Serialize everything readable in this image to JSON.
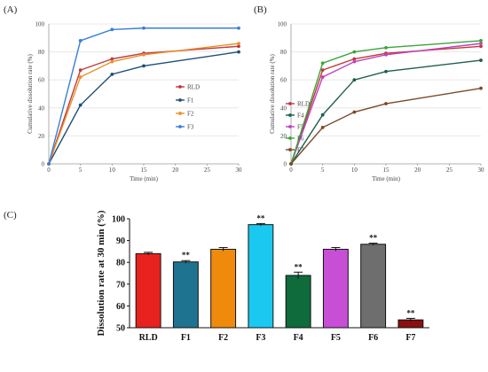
{
  "chart_data": [
    {
      "panel": "(A)",
      "type": "line",
      "xlabel": "Time (min)",
      "ylabel": "Cumulative dissolution rate (%)",
      "xlim": [
        0,
        30
      ],
      "ylim": [
        0,
        100
      ],
      "xticks": [
        0,
        5,
        10,
        15,
        20,
        25,
        30
      ],
      "yticks": [
        0,
        20,
        40,
        60,
        80,
        100
      ],
      "x": [
        0,
        5,
        10,
        15,
        30
      ],
      "legend": "right",
      "series": [
        {
          "name": "RLD",
          "color": "#c0393b",
          "values": [
            0,
            67,
            75,
            79,
            84
          ]
        },
        {
          "name": "F1",
          "color": "#1f4e79",
          "values": [
            0,
            42,
            64,
            70,
            80
          ]
        },
        {
          "name": "F2",
          "color": "#e8912b",
          "values": [
            0,
            62,
            73,
            78,
            86
          ]
        },
        {
          "name": "F3",
          "color": "#3a7fd5",
          "values": [
            0,
            88,
            96,
            97,
            97
          ]
        }
      ]
    },
    {
      "panel": "(B)",
      "type": "line",
      "xlabel": "Time (min)",
      "ylabel": "Cumulative dissolution rate (%)",
      "xlim": [
        0,
        30
      ],
      "ylim": [
        0,
        100
      ],
      "xticks": [
        0,
        5,
        10,
        15,
        20,
        25,
        30
      ],
      "yticks": [
        0,
        20,
        40,
        60,
        80,
        100
      ],
      "x": [
        0,
        5,
        10,
        15,
        30
      ],
      "legend": "right",
      "series": [
        {
          "name": "RLD",
          "color": "#c0393b",
          "values": [
            0,
            67,
            75,
            79,
            84
          ]
        },
        {
          "name": "F4",
          "color": "#1f5f4e",
          "values": [
            0,
            35,
            60,
            66,
            74
          ]
        },
        {
          "name": "F5",
          "color": "#c040c0",
          "values": [
            0,
            62,
            73,
            78,
            86
          ]
        },
        {
          "name": "F6",
          "color": "#3aa53a",
          "values": [
            0,
            72,
            80,
            83,
            88
          ]
        },
        {
          "name": "F7",
          "color": "#7a4a2a",
          "values": [
            0,
            26,
            37,
            43,
            54
          ]
        }
      ]
    },
    {
      "panel": "(C)",
      "type": "bar",
      "ylabel": "Dissolution rate at 30 min (%)",
      "ylim": [
        50,
        100
      ],
      "yticks": [
        50,
        60,
        70,
        80,
        90,
        100
      ],
      "categories": [
        "RLD",
        "F1",
        "F2",
        "F3",
        "F4",
        "F5",
        "F6",
        "F7"
      ],
      "values": [
        84.0,
        80.2,
        86.0,
        97.3,
        74.0,
        86.0,
        88.3,
        53.6
      ],
      "errors": [
        0.6,
        0.6,
        0.8,
        0.5,
        1.5,
        0.8,
        0.5,
        0.7
      ],
      "significance": [
        "",
        "**",
        "",
        "**",
        "**",
        "",
        "**",
        "**"
      ],
      "colors": [
        "#e8221f",
        "#1e7390",
        "#f08a0c",
        "#1ac8f0",
        "#0f6a3c",
        "#c64fd6",
        "#6e6e6e",
        "#8a0f0f"
      ]
    }
  ]
}
